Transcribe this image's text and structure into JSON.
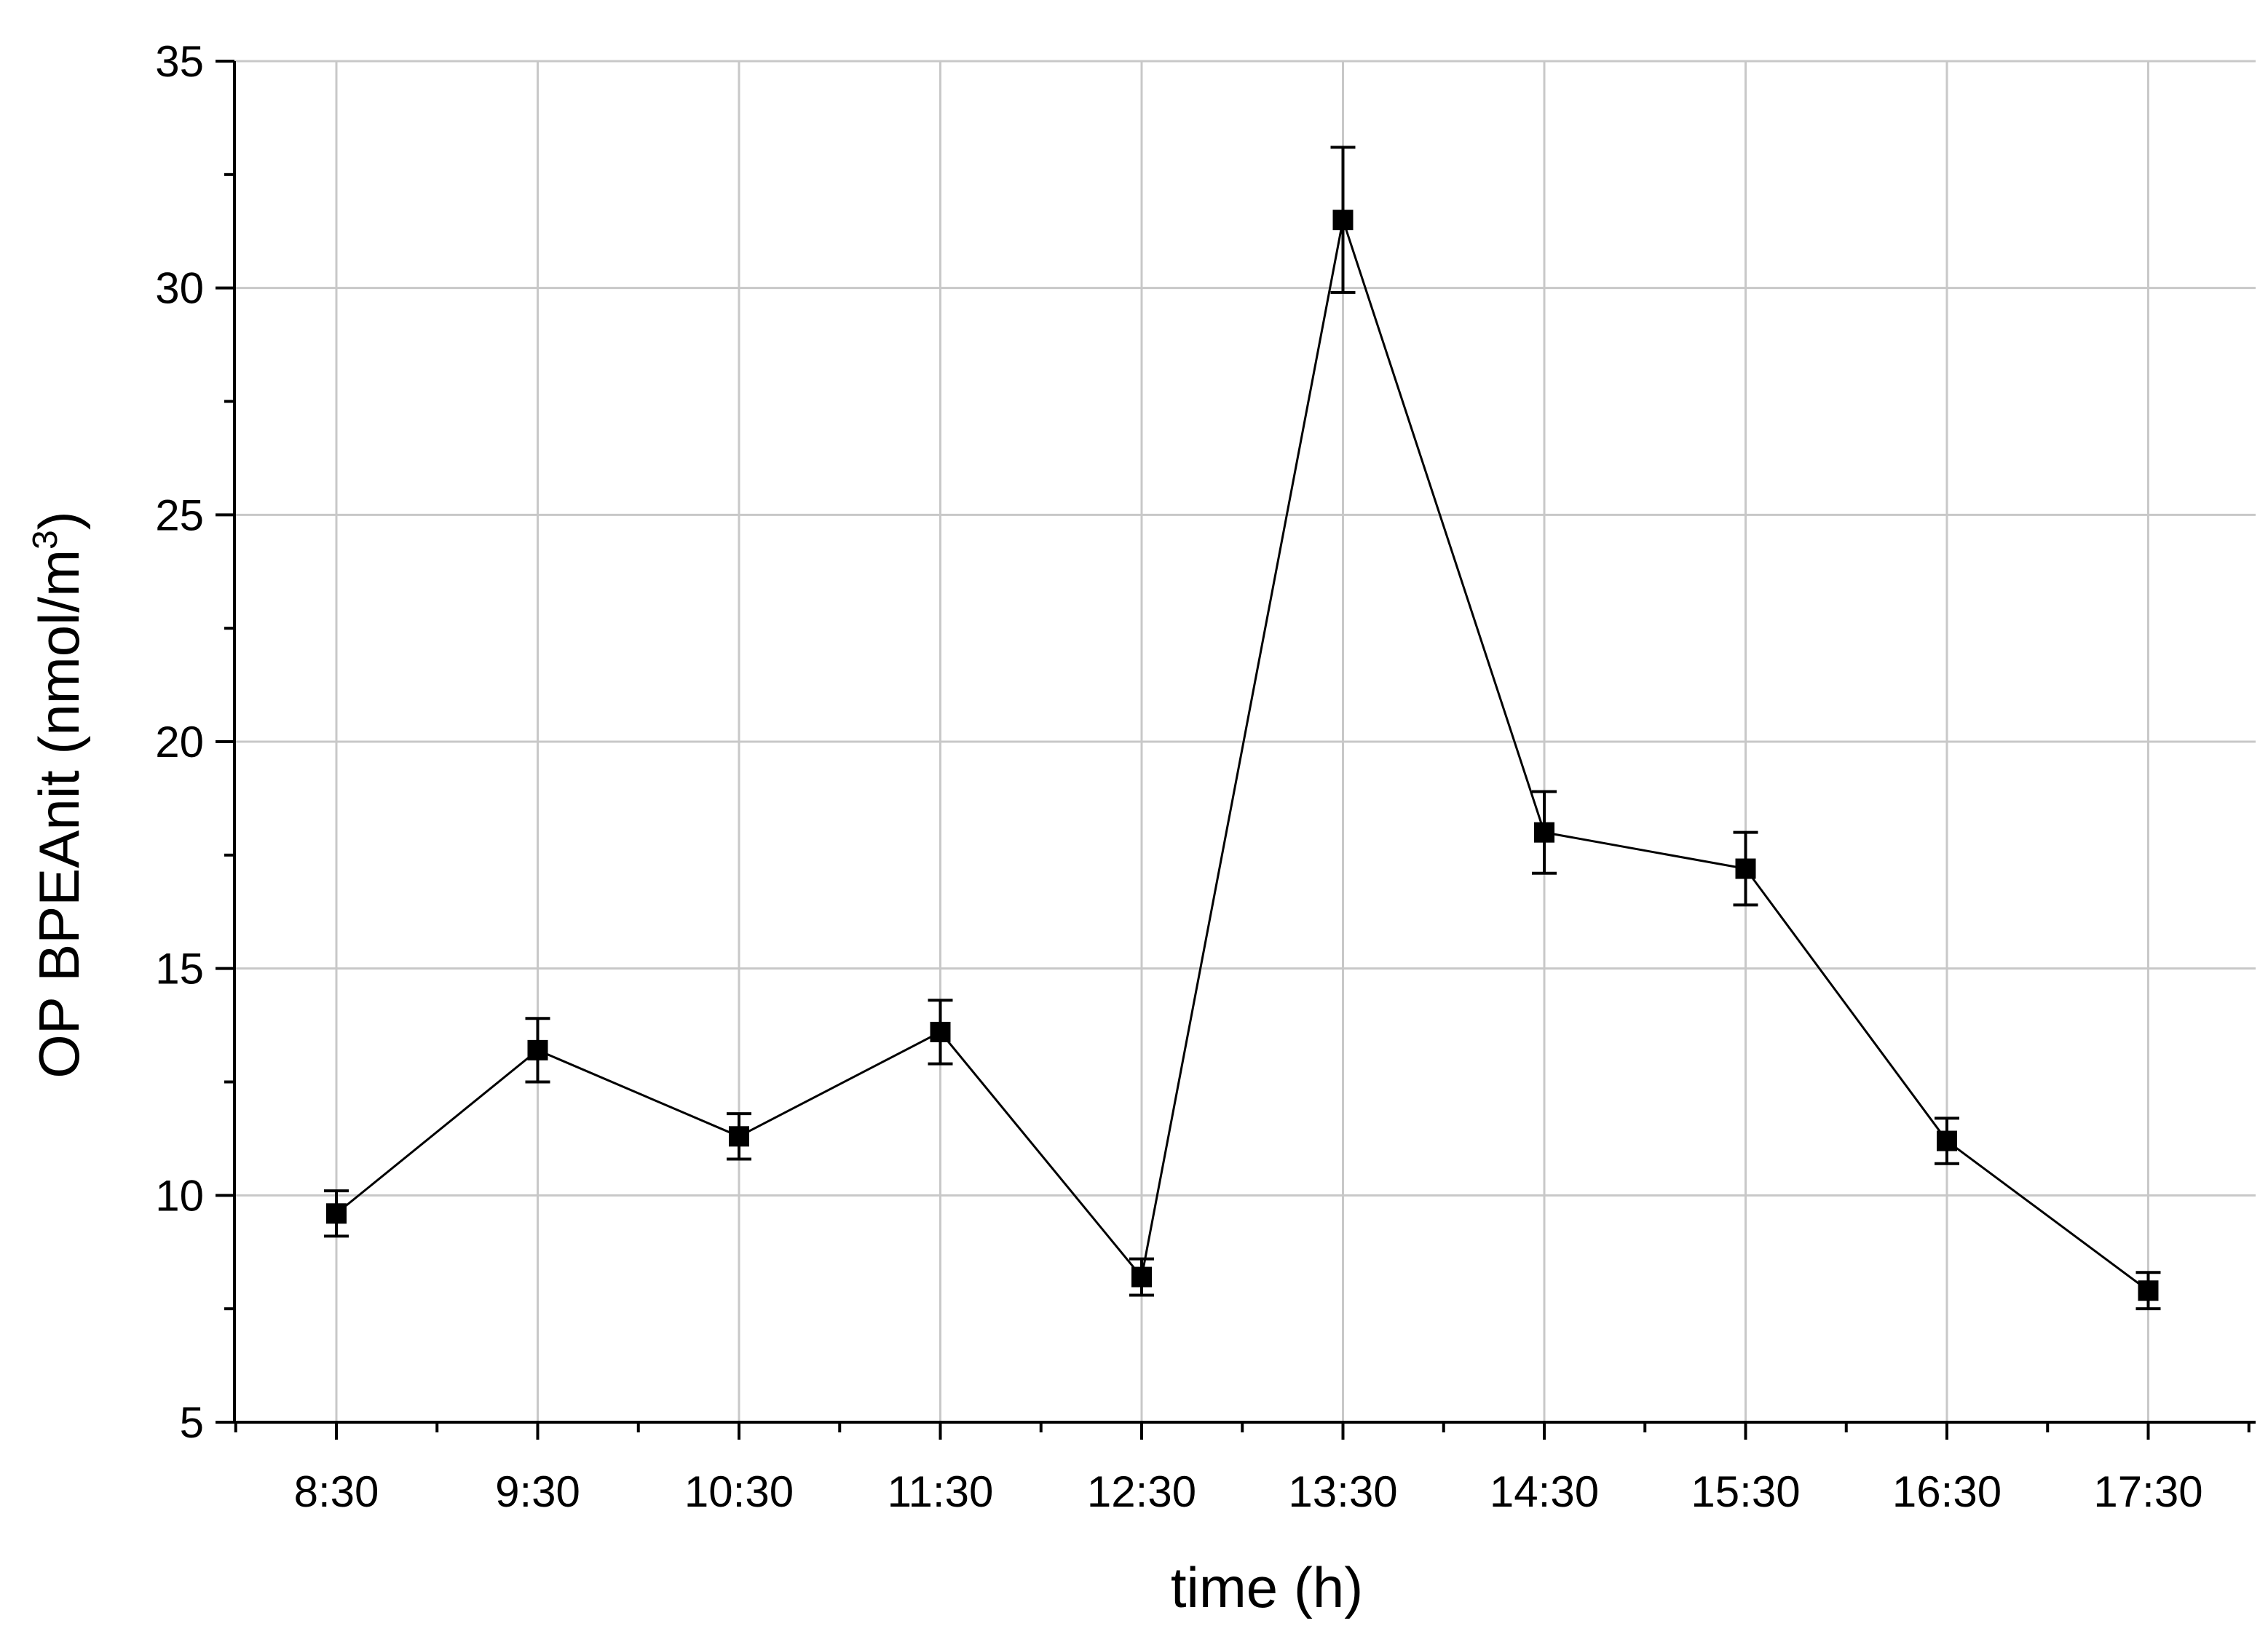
{
  "chart_data": {
    "type": "line",
    "title": "",
    "xlabel": "time (h)",
    "ylabel": {
      "main": "OP BPEAnit (nmol/m",
      "sup": "3",
      "close": ")"
    },
    "categories": [
      "8:30",
      "9:30",
      "10:30",
      "11:30",
      "12:30",
      "13:30",
      "14:30",
      "15:30",
      "16:30",
      "17:30"
    ],
    "series": [
      {
        "values": [
          9.6,
          13.2,
          11.3,
          13.6,
          8.2,
          31.5,
          18.0,
          17.2,
          11.2,
          7.9
        ],
        "error": [
          0.5,
          0.7,
          0.5,
          0.7,
          0.4,
          1.6,
          0.9,
          0.8,
          0.5,
          0.4
        ],
        "marker": "square",
        "color": "#000000"
      }
    ],
    "ylim": [
      5,
      35
    ],
    "yticks": [
      5,
      10,
      15,
      20,
      25,
      30,
      35
    ],
    "grid": true,
    "grid_color": "#c8c8c8"
  }
}
